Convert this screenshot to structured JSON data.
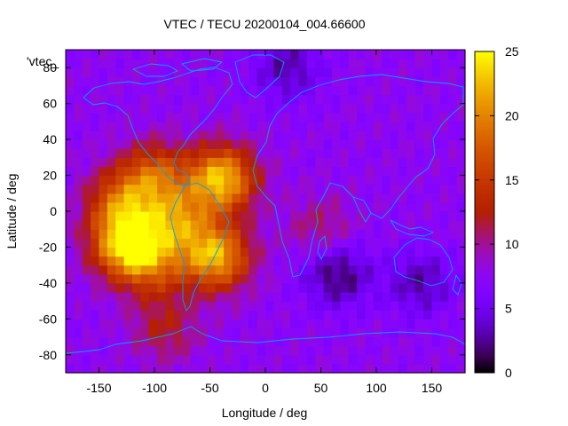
{
  "chart_data": {
    "type": "heatmap",
    "title": "VTEC / TECU 20200104_004.66600",
    "xlabel": "Longitude / deg",
    "ylabel": "Latitude / deg",
    "colorbar_label": "'vtec_",
    "xlim": [
      -180,
      180
    ],
    "ylim": [
      -90,
      90
    ],
    "x_ticks": [
      -150,
      -100,
      -50,
      0,
      50,
      100,
      150
    ],
    "y_ticks": [
      -80,
      -60,
      -40,
      -20,
      0,
      20,
      40,
      60,
      80
    ],
    "colorbar_range": [
      0,
      25
    ],
    "colorbar_ticks": [
      0,
      5,
      10,
      15,
      20,
      25
    ],
    "colormap": "gnuplot-pm3d",
    "grid": false,
    "coastline_color": "#00a0ff",
    "features": [
      {
        "lon": -125,
        "lat": -18,
        "value": 24
      },
      {
        "lon": -40,
        "lat": 18,
        "value": 23
      },
      {
        "lon": -45,
        "lat": -25,
        "value": 22
      },
      {
        "lon": -130,
        "lat": 5,
        "value": 17
      },
      {
        "lon": -100,
        "lat": 20,
        "value": 17
      },
      {
        "lon": -80,
        "lat": -5,
        "value": 18
      },
      {
        "lon": -100,
        "lat": -30,
        "value": 15
      },
      {
        "lon": 50,
        "lat": -10,
        "value": 11
      },
      {
        "lon": -90,
        "lat": -65,
        "value": 12
      },
      {
        "lon": 65,
        "lat": -35,
        "value": 1.5
      },
      {
        "lon": 140,
        "lat": -40,
        "value": 3
      },
      {
        "lon": 20,
        "lat": 80,
        "value": 3
      }
    ]
  }
}
